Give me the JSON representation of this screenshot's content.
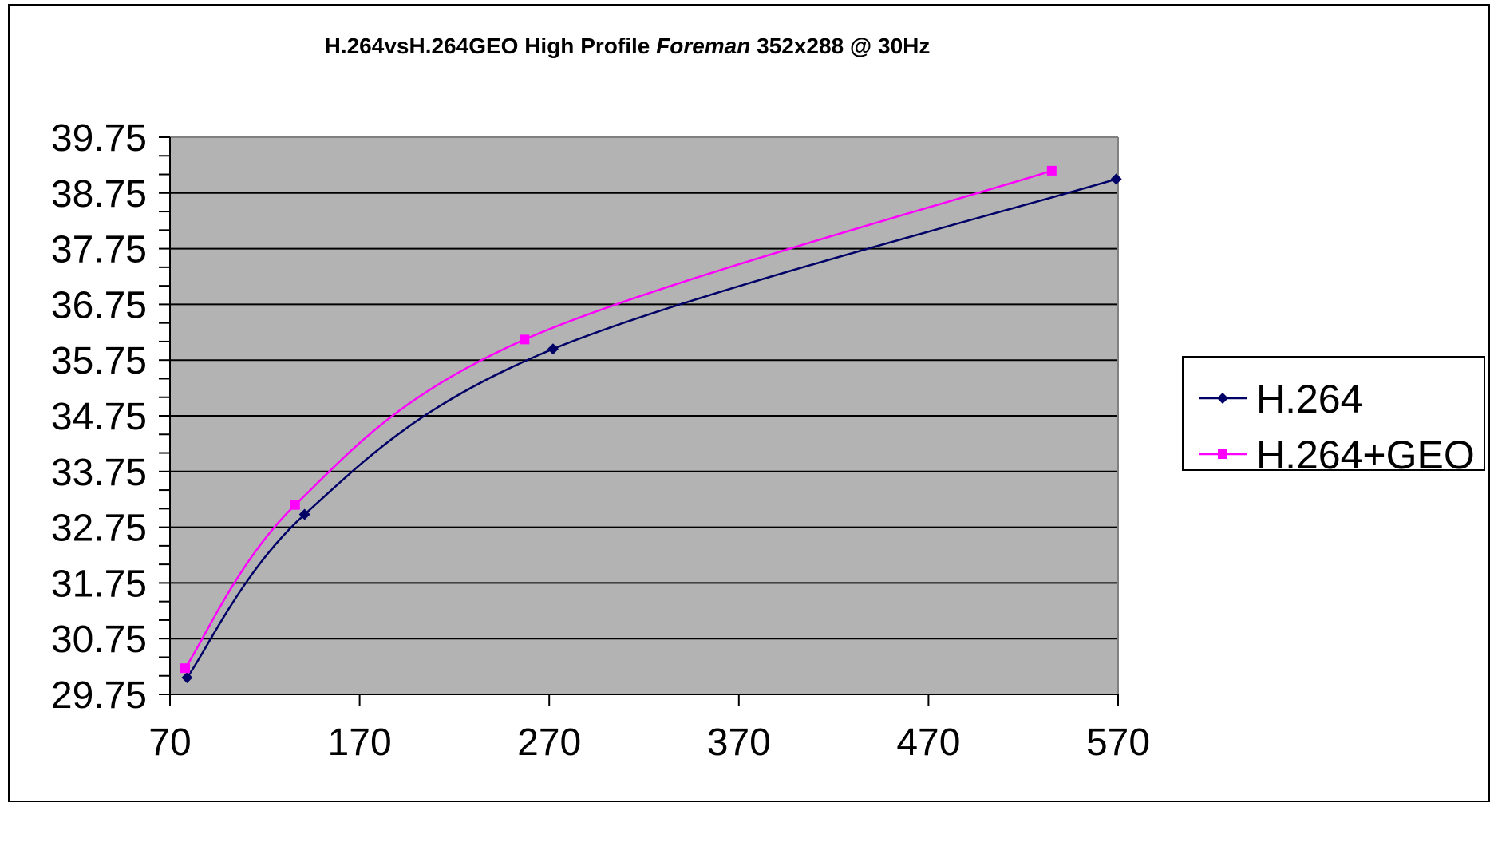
{
  "chart_data": {
    "type": "line",
    "title": {
      "part1": "H.264vsH.264GEO High Profile ",
      "part2_italic": "Foreman",
      "part3": " 352x288 @ 30Hz"
    },
    "xlabel": "",
    "ylabel": "",
    "xlim": [
      70,
      570
    ],
    "ylim": [
      29.75,
      39.75
    ],
    "x_ticks": [
      "70",
      "170",
      "270",
      "370",
      "470",
      "570"
    ],
    "y_ticks": [
      "39.75",
      "38.75",
      "37.75",
      "36.75",
      "35.75",
      "34.75",
      "33.75",
      "32.75",
      "31.75",
      "30.75",
      "29.75"
    ],
    "grid": "horizontal major lines",
    "plot_background": "#b3b3b3",
    "legend_position": "right",
    "series": [
      {
        "name": "H.264",
        "color": "#000066",
        "marker": "diamond",
        "points": [
          [
            79,
            30.05
          ],
          [
            141,
            32.98
          ],
          [
            272,
            35.95
          ],
          [
            569,
            39.0
          ]
        ]
      },
      {
        "name": "H.264+GEO",
        "color": "#ff00ff",
        "marker": "square",
        "points": [
          [
            78,
            30.22
          ],
          [
            136,
            33.15
          ],
          [
            257,
            36.12
          ],
          [
            535,
            39.15
          ]
        ]
      }
    ]
  }
}
